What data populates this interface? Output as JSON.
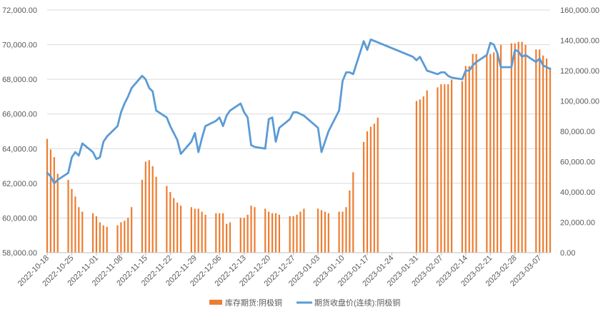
{
  "chart_data": {
    "type": "bar",
    "title": "",
    "xlabel": "",
    "y_left": {
      "min": 58000,
      "max": 72000,
      "step": 2000,
      "ticks": [
        "58,000.00",
        "60,000.00",
        "62,000.00",
        "64,000.00",
        "66,000.00",
        "68,000.00",
        "70,000.00",
        "72,000.00"
      ]
    },
    "y_right": {
      "min": 0,
      "max": 160000,
      "step": 20000,
      "ticks": [
        "0.00",
        "20,000.00",
        "40,000.00",
        "60,000.00",
        "80,000.00",
        "100,000.00",
        "120,000.00",
        "140,000.00",
        "160,000.00"
      ]
    },
    "x_range": [
      "2022-10-18",
      "2023-03-10"
    ],
    "x_ticks": [
      "2022-10-18",
      "2022-10-25",
      "2022-11-01",
      "2022-11-08",
      "2022-11-15",
      "2022-11-22",
      "2022-11-29",
      "2022-12-06",
      "2022-12-13",
      "2022-12-20",
      "2022-12-27",
      "2023-01-03",
      "2023-01-10",
      "2023-01-17",
      "2023-01-24",
      "2023-01-31",
      "2023-02-07",
      "2023-02-14",
      "2023-02-21",
      "2023-02-28",
      "2023-03-07"
    ],
    "grid": true,
    "legend_position": "bottom",
    "series": [
      {
        "name": "库存期货:阴极铜",
        "type": "bar",
        "axis": "right",
        "color": "#ED7D31",
        "points": [
          [
            "2022-10-18",
            75000
          ],
          [
            "2022-10-19",
            68000
          ],
          [
            "2022-10-20",
            63000
          ],
          [
            "2022-10-21",
            52000
          ],
          [
            "2022-10-24",
            48000
          ],
          [
            "2022-10-25",
            42000
          ],
          [
            "2022-10-26",
            37000
          ],
          [
            "2022-10-27",
            30000
          ],
          [
            "2022-10-28",
            27000
          ],
          [
            "2022-10-31",
            26000
          ],
          [
            "2022-11-01",
            24000
          ],
          [
            "2022-11-02",
            20000
          ],
          [
            "2022-11-03",
            18000
          ],
          [
            "2022-11-04",
            17000
          ],
          [
            "2022-11-07",
            18000
          ],
          [
            "2022-11-08",
            20000
          ],
          [
            "2022-11-09",
            21000
          ],
          [
            "2022-11-10",
            23000
          ],
          [
            "2022-11-11",
            30000
          ],
          [
            "2022-11-14",
            48000
          ],
          [
            "2022-11-15",
            60000
          ],
          [
            "2022-11-16",
            61000
          ],
          [
            "2022-11-17",
            57000
          ],
          [
            "2022-11-18",
            50000
          ],
          [
            "2022-11-21",
            44000
          ],
          [
            "2022-11-22",
            40000
          ],
          [
            "2022-11-23",
            36000
          ],
          [
            "2022-11-24",
            33000
          ],
          [
            "2022-11-25",
            31000
          ],
          [
            "2022-11-28",
            30000
          ],
          [
            "2022-11-29",
            29000
          ],
          [
            "2022-11-30",
            29000
          ],
          [
            "2022-12-01",
            27000
          ],
          [
            "2022-12-02",
            25000
          ],
          [
            "2022-12-05",
            26000
          ],
          [
            "2022-12-06",
            26000
          ],
          [
            "2022-12-07",
            26000
          ],
          [
            "2022-12-08",
            19000
          ],
          [
            "2022-12-09",
            20000
          ],
          [
            "2022-12-12",
            23000
          ],
          [
            "2022-12-13",
            23000
          ],
          [
            "2022-12-14",
            25000
          ],
          [
            "2022-12-15",
            31000
          ],
          [
            "2022-12-16",
            30000
          ],
          [
            "2022-12-19",
            29000
          ],
          [
            "2022-12-20",
            27000
          ],
          [
            "2022-12-21",
            26000
          ],
          [
            "2022-12-22",
            26000
          ],
          [
            "2022-12-23",
            25000
          ],
          [
            "2022-12-26",
            24000
          ],
          [
            "2022-12-27",
            24000
          ],
          [
            "2022-12-28",
            25000
          ],
          [
            "2022-12-29",
            27000
          ],
          [
            "2022-12-30",
            29000
          ],
          [
            "2023-01-03",
            29000
          ],
          [
            "2023-01-04",
            28000
          ],
          [
            "2023-01-05",
            27000
          ],
          [
            "2023-01-06",
            26000
          ],
          [
            "2023-01-09",
            27000
          ],
          [
            "2023-01-10",
            27000
          ],
          [
            "2023-01-11",
            30000
          ],
          [
            "2023-01-12",
            41000
          ],
          [
            "2023-01-13",
            53000
          ],
          [
            "2023-01-16",
            73000
          ],
          [
            "2023-01-17",
            80000
          ],
          [
            "2023-01-18",
            83000
          ],
          [
            "2023-01-19",
            85000
          ],
          [
            "2023-01-20",
            89000
          ],
          [
            "2023-01-31",
            100000
          ],
          [
            "2023-02-01",
            101000
          ],
          [
            "2023-02-02",
            103000
          ],
          [
            "2023-02-03",
            107000
          ],
          [
            "2023-02-06",
            109000
          ],
          [
            "2023-02-07",
            111000
          ],
          [
            "2023-02-08",
            111000
          ],
          [
            "2023-02-09",
            111000
          ],
          [
            "2023-02-10",
            114000
          ],
          [
            "2023-02-13",
            113000
          ],
          [
            "2023-02-14",
            123000
          ],
          [
            "2023-02-15",
            123000
          ],
          [
            "2023-02-16",
            131000
          ],
          [
            "2023-02-17",
            131000
          ],
          [
            "2023-02-20",
            130000
          ],
          [
            "2023-02-21",
            131000
          ],
          [
            "2023-02-22",
            132000
          ],
          [
            "2023-02-23",
            132000
          ],
          [
            "2023-02-24",
            137000
          ],
          [
            "2023-02-27",
            138000
          ],
          [
            "2023-02-28",
            138000
          ],
          [
            "2023-03-01",
            139000
          ],
          [
            "2023-03-02",
            139000
          ],
          [
            "2023-03-03",
            137000
          ],
          [
            "2023-03-06",
            134000
          ],
          [
            "2023-03-07",
            134000
          ],
          [
            "2023-03-08",
            130000
          ],
          [
            "2023-03-09",
            128000
          ],
          [
            "2023-03-10",
            122000
          ]
        ]
      },
      {
        "name": "期货收盘价(连续):阴极铜",
        "type": "line",
        "axis": "left",
        "color": "#5B9BD5",
        "points": [
          [
            "2022-10-18",
            62600
          ],
          [
            "2022-10-19",
            62400
          ],
          [
            "2022-10-20",
            62000
          ],
          [
            "2022-10-21",
            62200
          ],
          [
            "2022-10-24",
            62600
          ],
          [
            "2022-10-25",
            63500
          ],
          [
            "2022-10-26",
            63800
          ],
          [
            "2022-10-27",
            63600
          ],
          [
            "2022-10-28",
            64300
          ],
          [
            "2022-10-31",
            63800
          ],
          [
            "2022-11-01",
            63400
          ],
          [
            "2022-11-02",
            63500
          ],
          [
            "2022-11-03",
            64400
          ],
          [
            "2022-11-04",
            64700
          ],
          [
            "2022-11-07",
            65300
          ],
          [
            "2022-11-08",
            66100
          ],
          [
            "2022-11-09",
            66600
          ],
          [
            "2022-11-10",
            67000
          ],
          [
            "2022-11-11",
            67500
          ],
          [
            "2022-11-14",
            68200
          ],
          [
            "2022-11-15",
            68000
          ],
          [
            "2022-11-16",
            67500
          ],
          [
            "2022-11-17",
            67300
          ],
          [
            "2022-11-18",
            66200
          ],
          [
            "2022-11-21",
            65800
          ],
          [
            "2022-11-22",
            65300
          ],
          [
            "2022-11-23",
            64900
          ],
          [
            "2022-11-24",
            64500
          ],
          [
            "2022-11-25",
            63700
          ],
          [
            "2022-11-28",
            64400
          ],
          [
            "2022-11-29",
            64900
          ],
          [
            "2022-11-30",
            63800
          ],
          [
            "2022-12-01",
            64600
          ],
          [
            "2022-12-02",
            65300
          ],
          [
            "2022-12-05",
            65600
          ],
          [
            "2022-12-06",
            65800
          ],
          [
            "2022-12-07",
            65300
          ],
          [
            "2022-12-08",
            65900
          ],
          [
            "2022-12-09",
            66200
          ],
          [
            "2022-12-12",
            66600
          ],
          [
            "2022-12-13",
            66100
          ],
          [
            "2022-12-14",
            65800
          ],
          [
            "2022-12-15",
            64200
          ],
          [
            "2022-12-16",
            64100
          ],
          [
            "2022-12-19",
            64000
          ],
          [
            "2022-12-20",
            65700
          ],
          [
            "2022-12-21",
            65800
          ],
          [
            "2022-12-22",
            64400
          ],
          [
            "2022-12-23",
            65200
          ],
          [
            "2022-12-26",
            65700
          ],
          [
            "2022-12-27",
            66100
          ],
          [
            "2022-12-28",
            66100
          ],
          [
            "2022-12-29",
            66000
          ],
          [
            "2022-12-30",
            65900
          ],
          [
            "2023-01-03",
            65200
          ],
          [
            "2023-01-04",
            63800
          ],
          [
            "2023-01-05",
            64400
          ],
          [
            "2023-01-06",
            65000
          ],
          [
            "2023-01-09",
            66200
          ],
          [
            "2023-01-10",
            67900
          ],
          [
            "2023-01-11",
            68400
          ],
          [
            "2023-01-12",
            68400
          ],
          [
            "2023-01-13",
            68300
          ],
          [
            "2023-01-16",
            70200
          ],
          [
            "2023-01-17",
            69700
          ],
          [
            "2023-01-18",
            70300
          ],
          [
            "2023-01-30",
            69300
          ],
          [
            "2023-01-31",
            69100
          ],
          [
            "2023-02-01",
            69300
          ],
          [
            "2023-02-02",
            68900
          ],
          [
            "2023-02-03",
            68500
          ],
          [
            "2023-02-06",
            68300
          ],
          [
            "2023-02-07",
            68400
          ],
          [
            "2023-02-08",
            68400
          ],
          [
            "2023-02-09",
            68200
          ],
          [
            "2023-02-10",
            68100
          ],
          [
            "2023-02-13",
            68000
          ],
          [
            "2023-02-14",
            68500
          ],
          [
            "2023-02-15",
            68500
          ],
          [
            "2023-02-16",
            68800
          ],
          [
            "2023-02-17",
            69000
          ],
          [
            "2023-02-20",
            69400
          ],
          [
            "2023-02-21",
            70100
          ],
          [
            "2023-02-22",
            70000
          ],
          [
            "2023-02-23",
            69500
          ],
          [
            "2023-02-24",
            68700
          ],
          [
            "2023-02-27",
            68700
          ],
          [
            "2023-02-28",
            69700
          ],
          [
            "2023-03-01",
            69600
          ],
          [
            "2023-03-02",
            69300
          ],
          [
            "2023-03-03",
            69400
          ],
          [
            "2023-03-06",
            69000
          ],
          [
            "2023-03-07",
            69200
          ],
          [
            "2023-03-08",
            68800
          ],
          [
            "2023-03-09",
            68700
          ],
          [
            "2023-03-10",
            68600
          ]
        ]
      }
    ]
  }
}
